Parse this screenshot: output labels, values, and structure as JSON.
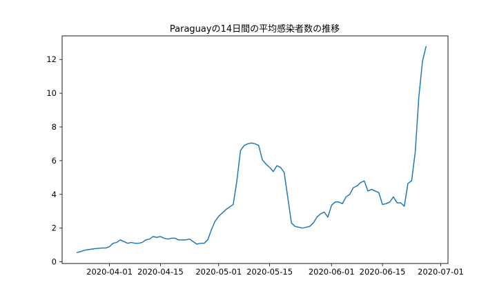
{
  "chart_data": {
    "type": "line",
    "title": "Paraguayの14日間の平均感染者数の推移",
    "xlabel": "",
    "ylabel": "",
    "x_start": "2020-03-23",
    "xlim": [
      "2020-03-19",
      "2020-07-03"
    ],
    "ylim": [
      -0.1,
      13.4
    ],
    "x_ticks": [
      "2020-04-01",
      "2020-04-15",
      "2020-05-01",
      "2020-05-15",
      "2020-06-01",
      "2020-06-15",
      "2020-07-01"
    ],
    "y_ticks": [
      0,
      2,
      4,
      6,
      8,
      10,
      12
    ],
    "grid": false,
    "color": "#1f77b4",
    "series": [
      {
        "values": [
          0.55,
          0.6,
          0.68,
          0.72,
          0.75,
          0.78,
          0.8,
          0.82,
          0.82,
          0.9,
          1.1,
          1.15,
          1.3,
          1.2,
          1.1,
          1.15,
          1.1,
          1.1,
          1.15,
          1.3,
          1.35,
          1.5,
          1.45,
          1.5,
          1.4,
          1.35,
          1.4,
          1.4,
          1.3,
          1.3,
          1.3,
          1.35,
          1.2,
          1.05,
          1.1,
          1.1,
          1.3,
          1.9,
          2.4,
          2.7,
          2.9,
          3.1,
          3.25,
          3.4,
          4.8,
          6.6,
          6.9,
          7.0,
          7.05,
          7.0,
          6.9,
          6.05,
          5.8,
          5.6,
          5.35,
          5.7,
          5.6,
          5.3,
          3.8,
          2.3,
          2.1,
          2.05,
          2.0,
          2.05,
          2.1,
          2.3,
          2.65,
          2.85,
          2.95,
          2.65,
          3.35,
          3.55,
          3.55,
          3.45,
          3.85,
          4.0,
          4.4,
          4.5,
          4.7,
          4.8,
          4.2,
          4.3,
          4.2,
          4.1,
          3.4,
          3.45,
          3.55,
          3.85,
          3.5,
          3.5,
          3.3,
          4.65,
          4.8,
          6.5,
          9.8,
          11.9,
          12.8
        ]
      }
    ]
  }
}
